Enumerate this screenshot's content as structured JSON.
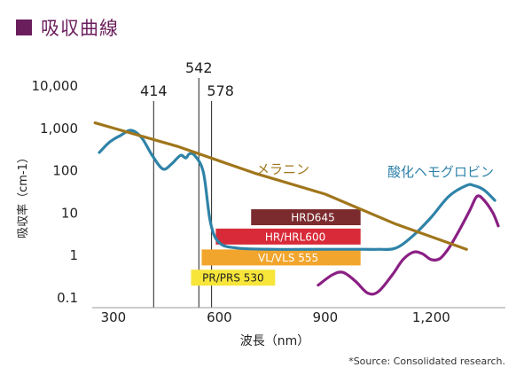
{
  "title": "吸収曲線",
  "source": "*Source: Consolidated research.",
  "chart_data": {
    "type": "line",
    "xlabel": "波長（nm）",
    "ylabel": "吸収率（cm-1）",
    "xlim": [
      240,
      1410
    ],
    "ylim": [
      0.1,
      10000
    ],
    "yscale": "log",
    "x_ticks": [
      {
        "value": 300,
        "label": "300"
      },
      {
        "value": 600,
        "label": "600"
      },
      {
        "value": 900,
        "label": "900"
      },
      {
        "value": 1200,
        "label": "1,200"
      }
    ],
    "y_ticks": [
      {
        "value": 10000,
        "label": "10,000"
      },
      {
        "value": 1000,
        "label": "1,000"
      },
      {
        "value": 100,
        "label": "100"
      },
      {
        "value": 10,
        "label": "10"
      },
      {
        "value": 1,
        "label": "1"
      },
      {
        "value": 0.1,
        "label": "0.1"
      }
    ],
    "peaks": [
      {
        "x": 414,
        "label": "414"
      },
      {
        "x": 542,
        "label": "542"
      },
      {
        "x": 578,
        "label": "578"
      }
    ],
    "series": [
      {
        "name": "メラニン",
        "color": "#a0761c",
        "points": [
          [
            248,
            1350
          ],
          [
            480,
            380
          ],
          [
            700,
            88
          ],
          [
            900,
            28
          ],
          [
            1100,
            5.5
          ],
          [
            1300,
            1.4
          ]
        ]
      },
      {
        "name": "酸化ヘモグロビン",
        "color": "#2f83a8",
        "points": [
          [
            260,
            270
          ],
          [
            290,
            480
          ],
          [
            320,
            680
          ],
          [
            350,
            900
          ],
          [
            380,
            600
          ],
          [
            410,
            230
          ],
          [
            440,
            110
          ],
          [
            465,
            145
          ],
          [
            490,
            230
          ],
          [
            505,
            200
          ],
          [
            515,
            250
          ],
          [
            530,
            230
          ],
          [
            555,
            90
          ],
          [
            575,
            6
          ],
          [
            600,
            2
          ],
          [
            650,
            1.5
          ],
          [
            750,
            1.4
          ],
          [
            900,
            1.4
          ],
          [
            1000,
            1.4
          ],
          [
            1050,
            1.4
          ],
          [
            1100,
            1.5
          ],
          [
            1150,
            3
          ],
          [
            1200,
            8
          ],
          [
            1250,
            25
          ],
          [
            1300,
            45
          ],
          [
            1320,
            45
          ],
          [
            1350,
            35
          ],
          [
            1380,
            20
          ]
        ]
      },
      {
        "name": "",
        "color": "#8a1f83",
        "points": [
          [
            880,
            0.2
          ],
          [
            920,
            0.35
          ],
          [
            950,
            0.4
          ],
          [
            985,
            0.25
          ],
          [
            1020,
            0.13
          ],
          [
            1050,
            0.14
          ],
          [
            1090,
            0.35
          ],
          [
            1120,
            0.8
          ],
          [
            1150,
            1.2
          ],
          [
            1175,
            1.1
          ],
          [
            1200,
            0.8
          ],
          [
            1225,
            0.85
          ],
          [
            1250,
            1.5
          ],
          [
            1280,
            4
          ],
          [
            1310,
            12
          ],
          [
            1330,
            25
          ],
          [
            1350,
            20
          ],
          [
            1375,
            10
          ],
          [
            1390,
            5
          ]
        ]
      }
    ],
    "bands": [
      {
        "label": "HRD645",
        "from": 690,
        "to": 1000,
        "level": 8,
        "color": "#7b2b2e",
        "text_color": "#ffffff"
      },
      {
        "label": "HR/HRL600",
        "from": 590,
        "to": 1000,
        "level": 2.8,
        "color": "#d82a38",
        "text_color": "#ffffff"
      },
      {
        "label": "VL/VLS 555",
        "from": 550,
        "to": 1000,
        "level": 0.9,
        "color": "#f2a52c",
        "text_color": "#ffffff"
      },
      {
        "label": "PR/PRS 530",
        "from": 520,
        "to": 758,
        "level": 0.3,
        "color": "#f7e53a",
        "text_color": "#222222"
      }
    ]
  }
}
